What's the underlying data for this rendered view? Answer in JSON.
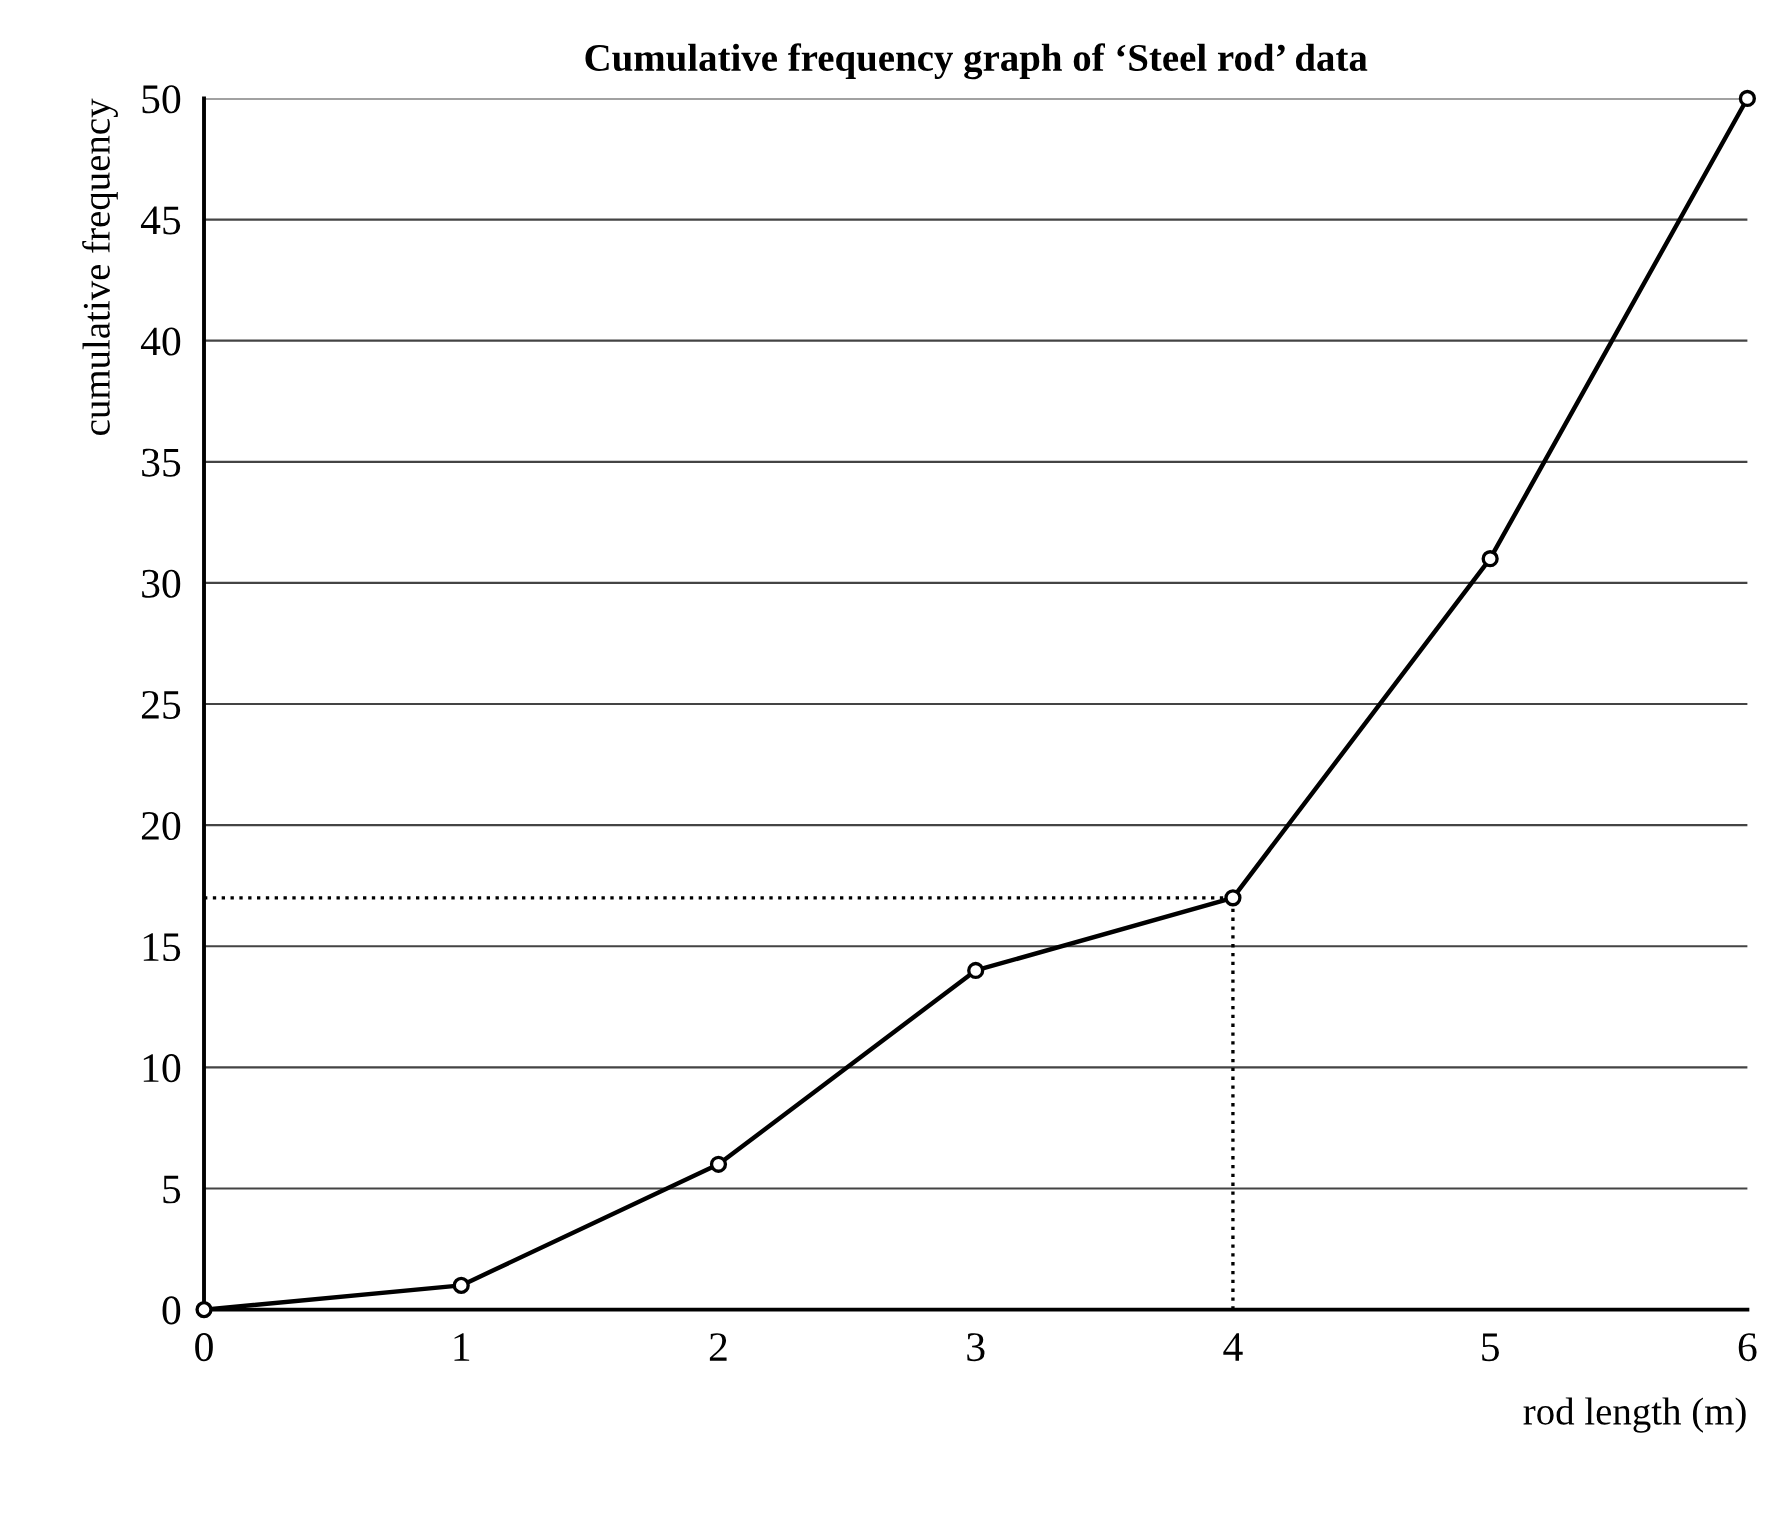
{
  "chart_data": {
    "type": "line",
    "title": "Cumulative frequency graph of ‘Steel rod’ data",
    "xlabel": "rod length (m)",
    "ylabel": "cumulative frequency",
    "x": [
      0,
      1,
      2,
      3,
      4,
      5,
      6
    ],
    "series": [
      {
        "color": "#000000",
        "values": [
          0,
          1,
          6,
          14,
          17,
          31,
          50
        ]
      }
    ],
    "xlim": [
      0,
      6
    ],
    "xticks": [
      0,
      1,
      2,
      3,
      4,
      5,
      6
    ],
    "ylim": [
      0,
      50
    ],
    "yticks": [
      0,
      5,
      10,
      15,
      20,
      25,
      30,
      35,
      40,
      45,
      50
    ],
    "grid": "y",
    "marker": "circle",
    "line_style": "solid",
    "legend": false,
    "ref_lines": [
      {
        "axis": "x",
        "value": 4,
        "line_style": "dotted"
      },
      {
        "axis": "y",
        "value": 17,
        "line_style": "dotted"
      }
    ]
  }
}
